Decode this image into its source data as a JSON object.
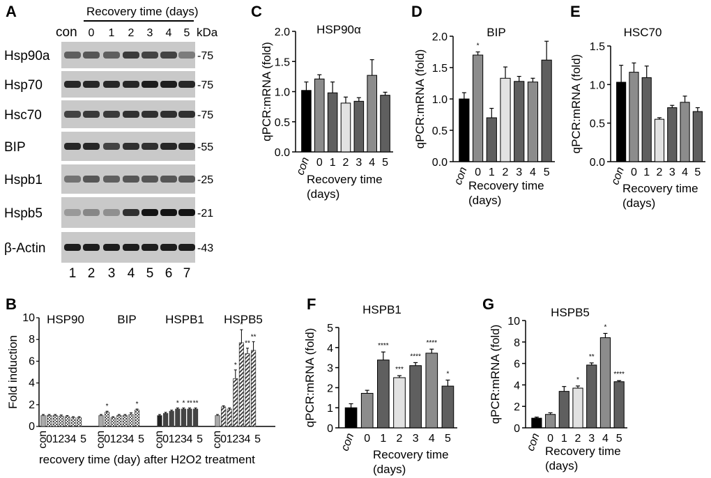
{
  "colors": {
    "black": "#000000",
    "dgray": "#5f5f5f",
    "mgray": "#8c8c8c",
    "lgray": "#b5b5b5",
    "vlgray": "#e2e2e2",
    "blot_bg": "#c9c9c9"
  },
  "panelA": {
    "label": "A",
    "header": "Recovery time (days)",
    "con": "con",
    "days": [
      "0",
      "1",
      "2",
      "3",
      "4",
      "5"
    ],
    "kda": "kDa",
    "lanes": [
      "1",
      "2",
      "3",
      "4",
      "5",
      "6",
      "7"
    ],
    "rows": [
      {
        "protein": "Hsp90a",
        "mw": "-75",
        "intensity": [
          0.55,
          0.6,
          0.55,
          0.75,
          0.7,
          0.7,
          0.4
        ]
      },
      {
        "protein": "Hsp70",
        "mw": "-75",
        "intensity": [
          0.85,
          0.85,
          0.85,
          0.85,
          0.9,
          0.9,
          0.85
        ]
      },
      {
        "protein": "Hsc70",
        "mw": "-75",
        "intensity": [
          0.7,
          0.75,
          0.75,
          0.8,
          0.8,
          0.8,
          0.8
        ]
      },
      {
        "protein": "BIP",
        "mw": "-55",
        "intensity": [
          0.85,
          0.85,
          0.7,
          0.8,
          0.8,
          0.85,
          0.85
        ]
      },
      {
        "protein": "Hspb1",
        "mw": "-25",
        "intensity": [
          0.45,
          0.6,
          0.55,
          0.6,
          0.6,
          0.6,
          0.6
        ]
      },
      {
        "protein": "Hspb5",
        "mw": "-21",
        "intensity": [
          0.25,
          0.35,
          0.3,
          0.8,
          0.95,
          0.95,
          0.95
        ]
      },
      {
        "protein": "β-Actin",
        "mw": "-43",
        "intensity": [
          0.9,
          0.9,
          0.9,
          0.9,
          0.9,
          0.9,
          0.9
        ]
      }
    ]
  },
  "chart_data": [
    {
      "panel": "B",
      "type": "bar",
      "ylabel": "Fold induction",
      "ylim": [
        0,
        10
      ],
      "yticks": [
        "0",
        "2",
        "4",
        "6",
        "8",
        "10"
      ],
      "xlabel": "recovery time (day) after H2O2 treatment",
      "groups": [
        {
          "name": "HSP90",
          "categories": [
            "con",
            "0",
            "1",
            "2",
            "3",
            "4",
            "5"
          ],
          "values": [
            1.0,
            1.0,
            1.0,
            0.95,
            0.9,
            0.8,
            0.8
          ],
          "errors": [
            0.1,
            0.1,
            0.1,
            0.1,
            0.1,
            0.1,
            0.1
          ],
          "stars": [
            "",
            "",
            "",
            "",
            "",
            "",
            ""
          ],
          "fill": "checker"
        },
        {
          "name": "BIP",
          "categories": [
            "con",
            "0",
            "1",
            "2",
            "3",
            "4",
            "5"
          ],
          "values": [
            1.0,
            1.3,
            0.8,
            1.0,
            1.0,
            1.1,
            1.5
          ],
          "errors": [
            0.1,
            0.1,
            0.1,
            0.1,
            0.1,
            0.15,
            0.1
          ],
          "stars": [
            "",
            "*",
            "",
            "",
            "",
            "",
            "*"
          ],
          "fill": "checker"
        },
        {
          "name": "HSPB1",
          "categories": [
            "con",
            "0",
            "1",
            "2",
            "3",
            "4",
            "5"
          ],
          "values": [
            1.0,
            1.2,
            1.4,
            1.6,
            1.6,
            1.6,
            1.6
          ],
          "errors": [
            0.1,
            0.1,
            0.1,
            0.1,
            0.1,
            0.1,
            0.1
          ],
          "stars": [
            "",
            "",
            "",
            "*",
            "*",
            "**",
            "**"
          ],
          "fill": "dark"
        },
        {
          "name": "HSPB5",
          "categories": [
            "con",
            "0",
            "1",
            "2",
            "3",
            "4",
            "5"
          ],
          "values": [
            1.0,
            1.8,
            1.6,
            4.4,
            7.7,
            6.7,
            7.0
          ],
          "errors": [
            0.1,
            0.1,
            0.1,
            0.8,
            1.2,
            0.5,
            0.8
          ],
          "stars": [
            "",
            "",
            "",
            "*",
            "*",
            "**",
            "**"
          ],
          "fill": "hatch"
        }
      ]
    },
    {
      "panel": "C",
      "type": "bar",
      "title": "HSP90α",
      "categories": [
        "con",
        "0",
        "1",
        "2",
        "3",
        "4",
        "5"
      ],
      "values": [
        1.02,
        1.21,
        0.98,
        0.81,
        0.84,
        1.27,
        0.94
      ],
      "errors": [
        0.14,
        0.07,
        0.18,
        0.1,
        0.06,
        0.26,
        0.05
      ],
      "stars": [
        "",
        "",
        "",
        "",
        "",
        "",
        ""
      ],
      "ylim": [
        0,
        2.0
      ],
      "yticks": [
        "0.0",
        "0.5",
        "1.0",
        "1.5",
        "2.0"
      ],
      "ylabel": "qPCR:mRNA (fold)",
      "xlabel": [
        "Recovery time",
        "(days)"
      ]
    },
    {
      "panel": "D",
      "type": "bar",
      "title": "BIP",
      "categories": [
        "con",
        "0",
        "1",
        "2",
        "3",
        "4",
        "5"
      ],
      "values": [
        1.0,
        1.7,
        0.7,
        1.33,
        1.28,
        1.27,
        1.62
      ],
      "errors": [
        0.1,
        0.05,
        0.15,
        0.18,
        0.08,
        0.06,
        0.3
      ],
      "stars": [
        "",
        "*",
        "",
        "",
        "",
        "",
        ""
      ],
      "ylim": [
        0,
        2.0
      ],
      "yticks": [
        "0.0",
        "0.5",
        "1.0",
        "1.5",
        "2.0"
      ],
      "ylabel": "qPCR:mRNA (fold)",
      "xlabel": [
        "Recovery time",
        "(days)"
      ]
    },
    {
      "panel": "E",
      "type": "bar",
      "title": "HSC70",
      "categories": [
        "con",
        "0",
        "1",
        "2",
        "3",
        "4",
        "5"
      ],
      "values": [
        1.03,
        1.16,
        1.09,
        0.55,
        0.7,
        0.77,
        0.65
      ],
      "errors": [
        0.22,
        0.12,
        0.15,
        0.02,
        0.03,
        0.08,
        0.05
      ],
      "stars": [
        "",
        "",
        "",
        "",
        "",
        "",
        ""
      ],
      "ylim": [
        0,
        1.5
      ],
      "yticks": [
        "0.0",
        "0.5",
        "1.0",
        "1.5"
      ],
      "ylabel": "qPCR:mRNA (fold)",
      "xlabel": [
        "Recovery time",
        "(days)"
      ]
    },
    {
      "panel": "F",
      "type": "bar",
      "title": "HSPB1",
      "categories": [
        "con",
        "0",
        "1",
        "2",
        "3",
        "4",
        "5"
      ],
      "values": [
        1.0,
        1.72,
        3.38,
        2.5,
        3.1,
        3.72,
        2.08
      ],
      "errors": [
        0.2,
        0.15,
        0.4,
        0.1,
        0.15,
        0.2,
        0.3
      ],
      "stars": [
        "",
        "",
        "****",
        "***",
        "****",
        "****",
        "*"
      ],
      "ylim": [
        0,
        5
      ],
      "yticks": [
        "0",
        "1",
        "2",
        "3",
        "4",
        "5"
      ],
      "ylabel": "qPCR:mRNA (fold)",
      "xlabel": [
        "Recovery time",
        "(days)"
      ]
    },
    {
      "panel": "G",
      "type": "bar",
      "title": "HSPB5",
      "categories": [
        "con",
        "0",
        "1",
        "2",
        "3",
        "4",
        "5"
      ],
      "values": [
        0.9,
        1.25,
        3.4,
        3.7,
        5.85,
        8.4,
        4.3
      ],
      "errors": [
        0.1,
        0.15,
        0.45,
        0.2,
        0.2,
        0.4,
        0.1
      ],
      "stars": [
        "",
        "",
        "",
        "*",
        "**",
        "*",
        "****"
      ],
      "ylim": [
        0,
        10
      ],
      "yticks": [
        "0",
        "2",
        "4",
        "6",
        "8",
        "10"
      ],
      "ylabel": "qPCR:mRNA (fold)",
      "xlabel": [
        "Recovery time",
        "(days)"
      ]
    }
  ]
}
